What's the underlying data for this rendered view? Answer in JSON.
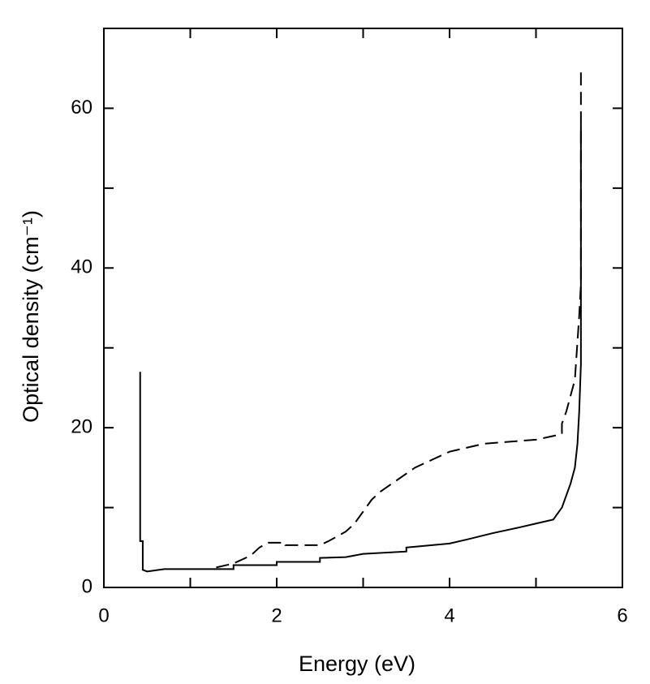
{
  "chart_data": {
    "type": "line",
    "xlabel": "Energy (eV)",
    "ylabel": "Optical density (cm⁻¹)",
    "xlim": [
      0,
      6
    ],
    "ylim": [
      0,
      70
    ],
    "xticks": [
      0,
      2,
      4,
      6
    ],
    "yticks": [
      0,
      20,
      40,
      60
    ],
    "xminor_ticks": [
      1,
      3,
      5
    ],
    "yminor_ticks": [
      10,
      30,
      50
    ],
    "series": [
      {
        "color": "#000000",
        "dash": false,
        "x": [
          0.42,
          0.42,
          0.45,
          0.45,
          0.5,
          0.7,
          1.5,
          1.5,
          2.0,
          2.0,
          2.5,
          2.5,
          2.8,
          3.0,
          3.5,
          3.5,
          4.0,
          4.2,
          4.5,
          4.8,
          5.0,
          5.2,
          5.3,
          5.35,
          5.4,
          5.45,
          5.48,
          5.5,
          5.52,
          5.52
        ],
        "values": [
          27,
          5.8,
          5.8,
          2.2,
          2.0,
          2.3,
          2.3,
          2.8,
          2.8,
          3.2,
          3.2,
          3.7,
          3.8,
          4.2,
          4.5,
          5.0,
          5.5,
          6.0,
          6.8,
          7.5,
          8.0,
          8.5,
          10,
          11.5,
          13,
          15,
          18,
          22,
          28,
          58
        ]
      },
      {
        "color": "#000000",
        "dash": true,
        "x": [
          1.3,
          1.5,
          1.7,
          1.8,
          1.9,
          2.1,
          2.1,
          2.5,
          2.6,
          2.8,
          2.9,
          3.0,
          3.1,
          3.2,
          3.4,
          3.6,
          3.8,
          4.0,
          4.2,
          4.4,
          5.0,
          5.3,
          5.3,
          5.35,
          5.4,
          5.45,
          5.5,
          5.52,
          5.52
        ],
        "values": [
          2.5,
          3.0,
          4.0,
          5.0,
          5.6,
          5.6,
          5.3,
          5.3,
          5.8,
          7.0,
          8.0,
          9.5,
          11.0,
          12.0,
          13.5,
          15.0,
          16.0,
          17.0,
          17.5,
          18.0,
          18.5,
          19.2,
          20.5,
          22,
          24,
          26,
          34,
          38,
          65
        ]
      }
    ]
  }
}
